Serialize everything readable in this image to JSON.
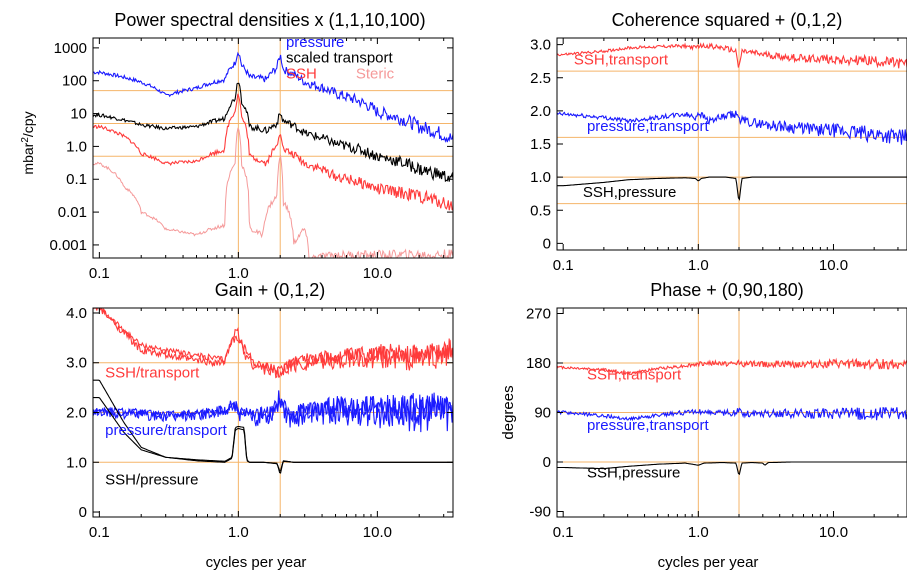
{
  "chart_data": [
    {
      "type": "line",
      "title": "Power spectral densities x (1,1,10,100)",
      "ylabel": "mbar²/cpy",
      "ylabel_base": "mbar",
      "ylabel_sup": "2",
      "ylabel_tail": "/cpy",
      "xlabel": "",
      "xscale": "log",
      "yscale": "log",
      "xlim": [
        0.09,
        35
      ],
      "ylim": [
        0.0004,
        2000
      ],
      "xticks": [
        {
          "v": 0.1,
          "label": "0.1"
        },
        {
          "v": 1,
          "label": "1.0"
        },
        {
          "v": 10,
          "label": "10.0"
        }
      ],
      "yticks": [
        {
          "v": 1000,
          "label": "1000"
        },
        {
          "v": 100,
          "label": "100"
        },
        {
          "v": 10,
          "label": "10"
        },
        {
          "v": 1,
          "label": "1.0"
        },
        {
          "v": 0.1,
          "label": "0.1"
        },
        {
          "v": 0.01,
          "label": "0.01"
        },
        {
          "v": 0.001,
          "label": "0.001"
        }
      ],
      "vlines": [
        1,
        2
      ],
      "hlines": [
        50,
        5,
        0.5
      ],
      "series": [
        {
          "name": "pressure",
          "color": "#1a1aff",
          "width": 1.1,
          "noise": 0.16,
          "x": [
            0.1,
            0.2,
            0.3,
            0.5,
            0.8,
            0.95,
            1,
            1.05,
            1.2,
            1.6,
            1.9,
            2,
            2.1,
            3,
            5,
            10,
            20,
            35
          ],
          "y": [
            180,
            90,
            35,
            60,
            110,
            350,
            800,
            300,
            130,
            110,
            250,
            600,
            220,
            90,
            40,
            11,
            4,
            1.6
          ]
        },
        {
          "name": "scaled transport",
          "color": "#000000",
          "width": 1.1,
          "noise": 0.15,
          "x": [
            0.1,
            0.2,
            0.3,
            0.5,
            0.8,
            0.95,
            1,
            1.05,
            1.2,
            1.6,
            1.9,
            2,
            2.1,
            3,
            5,
            10,
            20,
            35
          ],
          "y": [
            9,
            4.5,
            3.5,
            4,
            7,
            30,
            110,
            25,
            4,
            3,
            5,
            10,
            6,
            2.5,
            1.2,
            0.5,
            0.2,
            0.1
          ]
        },
        {
          "name": "SSH",
          "color": "#ff3b3b",
          "width": 1.1,
          "noise": 0.15,
          "x": [
            0.1,
            0.2,
            0.3,
            0.5,
            0.8,
            0.95,
            1,
            1.05,
            1.2,
            1.6,
            1.9,
            2,
            2.1,
            3,
            5,
            10,
            20,
            35
          ],
          "y": [
            4,
            0.6,
            0.3,
            0.35,
            0.8,
            12,
            40,
            8,
            0.5,
            0.3,
            1,
            3,
            0.8,
            0.3,
            0.12,
            0.05,
            0.03,
            0.015
          ]
        },
        {
          "name": "Steric",
          "color": "#f59a9a",
          "width": 1.0,
          "noise": 0.12,
          "x": [
            0.1,
            0.15,
            0.2,
            0.3,
            0.5,
            0.8,
            0.95,
            1,
            1.05,
            1.2,
            1.5,
            1.9,
            2,
            2.1,
            2.5,
            3,
            3.2,
            5,
            8,
            20,
            35
          ],
          "y": [
            0.3,
            0.06,
            0.01,
            0.003,
            0.002,
            0.004,
            0.3,
            4,
            0.3,
            0.003,
            0.002,
            0.03,
            0.5,
            0.02,
            0.001,
            0.003,
            0.0004,
            0.0005,
            0.0005,
            0.0005,
            0.0005
          ]
        }
      ],
      "labels": [
        {
          "text": "pressure",
          "color": "#1a1aff",
          "x": 2.2,
          "y": 1050
        },
        {
          "text": "scaled transport",
          "color": "#000000",
          "x": 2.2,
          "y": 360
        },
        {
          "text": "SSH",
          "color": "#ff3b3b",
          "x": 2.2,
          "y": 115
        },
        {
          "text": "Steric",
          "color": "#f59a9a",
          "x": 7,
          "y": 115
        }
      ]
    },
    {
      "type": "line",
      "title": "Coherence squared + (0,1,2)",
      "xscale": "log",
      "yscale": "linear",
      "xlim": [
        0.09,
        35
      ],
      "ylim": [
        -0.1,
        3.1
      ],
      "xticks": [
        {
          "v": 0.1,
          "label": "0.1"
        },
        {
          "v": 1,
          "label": "1.0"
        },
        {
          "v": 10,
          "label": "10.0"
        }
      ],
      "yticks": [
        {
          "v": 3,
          "label": "3.0"
        },
        {
          "v": 2.5,
          "label": "2.5"
        },
        {
          "v": 2,
          "label": "2.0"
        },
        {
          "v": 1.5,
          "label": "1.5"
        },
        {
          "v": 1,
          "label": "1.0"
        },
        {
          "v": 0.5,
          "label": "0.5"
        },
        {
          "v": 0,
          "label": "0"
        }
      ],
      "vlines": [
        1,
        2
      ],
      "hlines": [
        2.6,
        1.6,
        1.0,
        0.6
      ],
      "series": [
        {
          "name": "SSH,transport",
          "color": "#ff3b3b",
          "width": 1.1,
          "noise": 0.06,
          "x": [
            0.1,
            0.2,
            0.3,
            0.5,
            0.8,
            0.95,
            1,
            1.2,
            1.5,
            1.9,
            2,
            2.1,
            3,
            5,
            10,
            20,
            35
          ],
          "y": [
            2.85,
            2.9,
            2.95,
            2.97,
            2.98,
            2.95,
            2.98,
            2.98,
            2.95,
            2.9,
            2.65,
            2.9,
            2.85,
            2.8,
            2.78,
            2.75,
            2.7
          ]
        },
        {
          "name": "pressure,transport",
          "color": "#1a1aff",
          "width": 1.1,
          "noise": 0.09,
          "x": [
            0.1,
            0.2,
            0.3,
            0.5,
            0.8,
            0.95,
            1,
            1.2,
            1.5,
            1.9,
            2,
            2.1,
            3,
            5,
            10,
            20,
            35
          ],
          "y": [
            1.95,
            1.9,
            1.85,
            1.9,
            1.95,
            1.9,
            1.98,
            1.85,
            1.9,
            1.95,
            1.9,
            1.85,
            1.8,
            1.75,
            1.7,
            1.65,
            1.6
          ]
        },
        {
          "name": "SSH,pressure",
          "color": "#000000",
          "width": 1.1,
          "noise": 0.0,
          "x": [
            0.1,
            0.2,
            0.3,
            0.5,
            0.8,
            0.95,
            1,
            1.05,
            1.2,
            1.6,
            1.9,
            2,
            2.1,
            2.5,
            3,
            5,
            10,
            35
          ],
          "y": [
            0.87,
            0.92,
            0.96,
            0.98,
            0.99,
            0.98,
            0.94,
            0.98,
            1.0,
            1.0,
            0.98,
            0.62,
            0.98,
            1.0,
            1.0,
            1.0,
            1.0,
            1.0
          ]
        }
      ],
      "labels": [
        {
          "text": "SSH,transport",
          "color": "#ff3b3b",
          "x": 0.12,
          "y": 2.7
        },
        {
          "text": "pressure,transport",
          "color": "#1a1aff",
          "x": 0.15,
          "y": 1.7
        },
        {
          "text": "SSH,pressure",
          "color": "#000000",
          "x": 0.14,
          "y": 0.7
        }
      ]
    },
    {
      "type": "line",
      "title": "Gain + (0,1,2)",
      "xlabel": "cycles per year",
      "xscale": "log",
      "yscale": "linear",
      "xlim": [
        0.09,
        35
      ],
      "ylim": [
        -0.1,
        4.1
      ],
      "xticks": [
        {
          "v": 0.1,
          "label": "0.1"
        },
        {
          "v": 1,
          "label": "1.0"
        },
        {
          "v": 10,
          "label": "10.0"
        }
      ],
      "yticks": [
        {
          "v": 4,
          "label": "4.0"
        },
        {
          "v": 3,
          "label": "3.0"
        },
        {
          "v": 2,
          "label": "2.0"
        },
        {
          "v": 1,
          "label": "1.0"
        },
        {
          "v": 0,
          "label": "0"
        }
      ],
      "vlines": [
        1,
        2
      ],
      "hlines": [
        3.0,
        2.0,
        1.0
      ],
      "series": [
        {
          "name": "SSH/transport a",
          "color": "#ff3b3b",
          "width": 1.1,
          "noise": 0.15,
          "x": [
            0.1,
            0.2,
            0.3,
            0.5,
            0.8,
            0.9,
            1,
            1.1,
            1.3,
            1.7,
            2,
            2.3,
            3,
            5,
            10,
            20,
            35
          ],
          "y": [
            4.1,
            3.35,
            3.25,
            3.15,
            3.05,
            3.45,
            3.5,
            3.3,
            3.0,
            2.9,
            2.8,
            3.0,
            3.1,
            3.1,
            3.2,
            3.2,
            3.3
          ]
        },
        {
          "name": "SSH/transport b",
          "color": "#ff3b3b",
          "width": 1.1,
          "noise": 0.2,
          "x": [
            0.1,
            0.2,
            0.3,
            0.5,
            0.8,
            0.9,
            1,
            1.1,
            1.3,
            1.7,
            2,
            2.3,
            3,
            5,
            10,
            20,
            35
          ],
          "y": [
            4.1,
            3.25,
            3.15,
            3.05,
            3.0,
            3.55,
            3.6,
            3.2,
            2.95,
            2.85,
            2.75,
            2.95,
            3.0,
            3.05,
            3.1,
            3.1,
            3.2
          ]
        },
        {
          "name": "pressure/transport a",
          "color": "#1a1aff",
          "width": 1.1,
          "noise": 0.2,
          "x": [
            0.1,
            0.2,
            0.3,
            0.5,
            0.8,
            0.9,
            1,
            1.1,
            1.3,
            1.7,
            2,
            2.3,
            3,
            5,
            10,
            20,
            35
          ],
          "y": [
            2.05,
            2.0,
            1.95,
            2.0,
            2.05,
            2.15,
            2.05,
            2.0,
            1.95,
            2.0,
            2.2,
            2.0,
            2.05,
            2.1,
            2.1,
            2.1,
            2.05
          ]
        },
        {
          "name": "pressure/transport b",
          "color": "#1a1aff",
          "width": 1.1,
          "noise": 0.3,
          "x": [
            0.1,
            0.2,
            0.3,
            0.5,
            0.8,
            0.9,
            1,
            1.1,
            1.3,
            1.7,
            2,
            2.3,
            3,
            5,
            10,
            20,
            35
          ],
          "y": [
            2.0,
            1.95,
            1.9,
            1.95,
            2.0,
            2.2,
            2.0,
            1.95,
            1.9,
            1.95,
            2.3,
            1.9,
            2.0,
            2.05,
            2.0,
            2.0,
            2.0
          ]
        },
        {
          "name": "SSH/pressure a",
          "color": "#000000",
          "width": 1.1,
          "noise": 0.0,
          "x": [
            0.1,
            0.15,
            0.2,
            0.3,
            0.5,
            0.8,
            0.9,
            0.95,
            1.0,
            1.1,
            1.15,
            1.2,
            1.5,
            1.9,
            2,
            2.1,
            2.5,
            3,
            5,
            10,
            35
          ],
          "y": [
            2.65,
            1.8,
            1.3,
            1.1,
            1.05,
            1.02,
            1.1,
            1.7,
            1.72,
            1.7,
            1.05,
            1.0,
            1.0,
            0.98,
            0.75,
            1.02,
            1.0,
            1.0,
            1.0,
            1.0,
            1.0
          ]
        },
        {
          "name": "SSH/pressure b",
          "color": "#000000",
          "width": 1.1,
          "noise": 0.0,
          "x": [
            0.1,
            0.15,
            0.2,
            0.3,
            0.5,
            0.8,
            0.9,
            0.95,
            1.0,
            1.1,
            1.15,
            1.2,
            1.5,
            1.9,
            2,
            2.1,
            2.5,
            3,
            5,
            10,
            35
          ],
          "y": [
            2.3,
            1.6,
            1.25,
            1.1,
            1.03,
            1.0,
            1.08,
            1.65,
            1.68,
            1.65,
            1.03,
            1.0,
            1.0,
            0.97,
            0.8,
            1.03,
            1.0,
            1.0,
            1.0,
            1.0,
            1.0
          ]
        }
      ],
      "labels": [
        {
          "text": "SSH/transport",
          "color": "#ff3b3b",
          "x": 0.11,
          "y": 2.7
        },
        {
          "text": "pressure/transport",
          "color": "#1a1aff",
          "x": 0.11,
          "y": 1.55
        },
        {
          "text": "SSH/pressure",
          "color": "#000000",
          "x": 0.11,
          "y": 0.55
        }
      ]
    },
    {
      "type": "line",
      "title": "Phase + (0,90,180)",
      "ylabel": "degrees",
      "xlabel": "cycles per year",
      "xscale": "log",
      "yscale": "linear",
      "xlim": [
        0.09,
        35
      ],
      "ylim": [
        -100,
        280
      ],
      "xticks": [
        {
          "v": 0.1,
          "label": "0.1"
        },
        {
          "v": 1,
          "label": "1.0"
        },
        {
          "v": 10,
          "label": "10.0"
        }
      ],
      "yticks": [
        {
          "v": 270,
          "label": "270"
        },
        {
          "v": 180,
          "label": "180"
        },
        {
          "v": 90,
          "label": "90"
        },
        {
          "v": 0,
          "label": "0"
        },
        {
          "v": -90,
          "label": "-90"
        }
      ],
      "vlines": [
        1,
        2
      ],
      "hlines": [
        180,
        90,
        0
      ],
      "series": [
        {
          "name": "SSH,transport",
          "color": "#ff3b3b",
          "width": 1.1,
          "noise": 7,
          "x": [
            0.1,
            0.2,
            0.3,
            0.5,
            0.8,
            1,
            1.2,
            1.9,
            2,
            2.1,
            3,
            5,
            10,
            20,
            35
          ],
          "y": [
            172,
            168,
            160,
            170,
            175,
            178,
            180,
            178,
            183,
            178,
            178,
            178,
            178,
            178,
            178
          ]
        },
        {
          "name": "pressure,transport",
          "color": "#1a1aff",
          "width": 1.1,
          "noise": 9,
          "x": [
            0.1,
            0.2,
            0.3,
            0.5,
            0.8,
            1,
            1.2,
            1.9,
            2,
            2.1,
            3,
            5,
            10,
            20,
            35
          ],
          "y": [
            90,
            84,
            78,
            85,
            90,
            92,
            90,
            88,
            95,
            88,
            88,
            88,
            88,
            88,
            88
          ]
        },
        {
          "name": "SSH,pressure",
          "color": "#000000",
          "width": 1.1,
          "noise": 0,
          "x": [
            0.1,
            0.2,
            0.3,
            0.5,
            0.8,
            0.9,
            1,
            1.1,
            1.5,
            1.9,
            2,
            2.1,
            2.5,
            3,
            3.1,
            3.3,
            5,
            10,
            35
          ],
          "y": [
            -10,
            -12,
            -8,
            -4,
            -2,
            -4,
            -6,
            -2,
            -1,
            -2,
            -25,
            -2,
            -1,
            -2,
            -6,
            -1,
            0,
            0,
            0
          ]
        }
      ],
      "labels": [
        {
          "text": "SSH,transport",
          "color": "#ff3b3b",
          "x": 0.15,
          "y": 150
        },
        {
          "text": "pressure,transport",
          "color": "#1a1aff",
          "x": 0.15,
          "y": 58
        },
        {
          "text": "SSH,pressure",
          "color": "#000000",
          "x": 0.15,
          "y": -28
        }
      ]
    }
  ]
}
